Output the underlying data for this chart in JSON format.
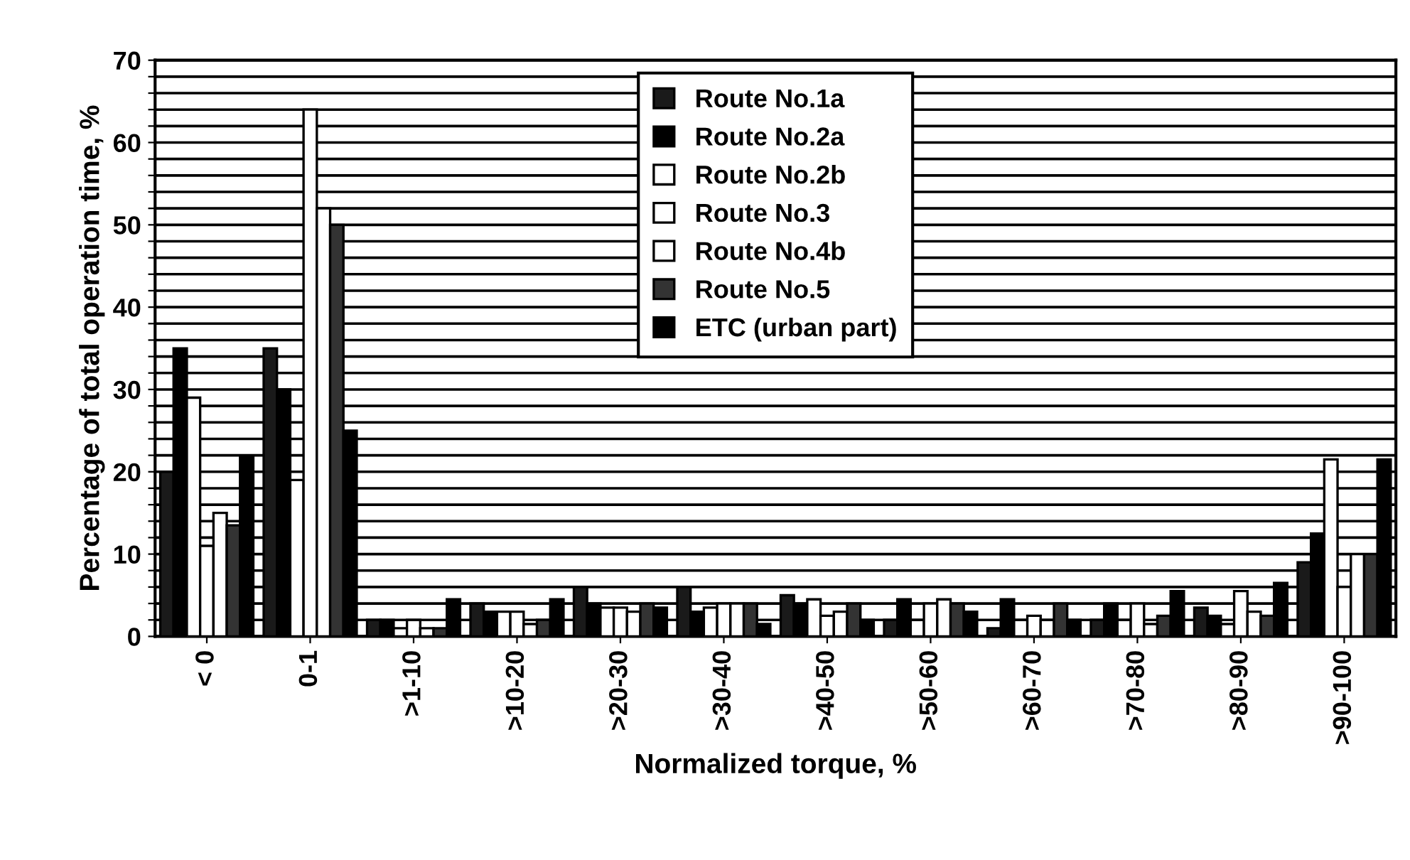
{
  "chart_data": {
    "type": "bar",
    "xlabel": "Normalized torque, %",
    "ylabel": "Percentage of total operation time, %",
    "categories": [
      "< 0",
      "0-1",
      ">1-10",
      ">10-20",
      ">20-30",
      ">30-40",
      ">40-50",
      ">50-60",
      ">60-70",
      ">70-80",
      ">80-90",
      ">90-100"
    ],
    "series": [
      {
        "name": "Route No.1a",
        "color": "#1a1a1a",
        "values": [
          20,
          35,
          2,
          4,
          6,
          6,
          5,
          2,
          1,
          2,
          3.5,
          9
        ]
      },
      {
        "name": "Route No.2a",
        "color": "#000000",
        "values": [
          35,
          30,
          2,
          3,
          4,
          3,
          4,
          4.5,
          4.5,
          4,
          2.5,
          12.5
        ]
      },
      {
        "name": "Route No.2b",
        "color": "#ffffff",
        "values": [
          29,
          19,
          1,
          3,
          3.5,
          3.5,
          4.5,
          2,
          2,
          2,
          1.5,
          21.5
        ]
      },
      {
        "name": "Route No.3",
        "color": "#ffffff",
        "values": [
          11,
          64,
          2,
          3,
          3.5,
          4,
          2.5,
          4,
          2.5,
          4,
          5.5,
          6
        ]
      },
      {
        "name": "Route No.4b",
        "color": "#ffffff",
        "values": [
          15,
          52,
          1,
          1.5,
          3,
          4,
          3,
          4.5,
          2,
          1.5,
          3,
          10
        ]
      },
      {
        "name": "Route No.5",
        "color": "#333333",
        "values": [
          13.5,
          50,
          1,
          2,
          4,
          4,
          4,
          4,
          4,
          2.5,
          2.5,
          10
        ]
      },
      {
        "name": "ETC (urban part)",
        "color": "#000000",
        "values": [
          22,
          25,
          4.5,
          4.5,
          3.5,
          1.5,
          2,
          3,
          2,
          5.5,
          6.5,
          21.5
        ]
      }
    ],
    "ylim": [
      0,
      70
    ],
    "yticks": [
      0,
      {
        "value": 2,
        "label": null
      },
      {
        "value": 4,
        "label": null
      },
      {
        "value": 6,
        "label": null
      },
      {
        "value": 8,
        "label": null
      },
      10,
      {
        "value": 12,
        "label": null
      },
      {
        "value": 14,
        "label": null
      },
      {
        "value": 16,
        "label": null
      },
      {
        "value": 18,
        "label": null
      },
      20,
      {
        "value": 22,
        "label": null
      },
      {
        "value": 24,
        "label": null
      },
      {
        "value": 26,
        "label": null
      },
      {
        "value": 28,
        "label": null
      },
      30,
      {
        "value": 32,
        "label": null
      },
      {
        "value": 34,
        "label": null
      },
      {
        "value": 36,
        "label": null
      },
      {
        "value": 38,
        "label": null
      },
      40,
      {
        "value": 42,
        "label": null
      },
      {
        "value": 44,
        "label": null
      },
      {
        "value": 46,
        "label": null
      },
      {
        "value": 48,
        "label": null
      },
      50,
      {
        "value": 52,
        "label": null
      },
      {
        "value": 54,
        "label": null
      },
      {
        "value": 56,
        "label": null
      },
      {
        "value": 58,
        "label": null
      },
      60,
      {
        "value": 62,
        "label": null
      },
      {
        "value": 64,
        "label": null
      },
      {
        "value": 66,
        "label": null
      },
      {
        "value": 68,
        "label": null
      },
      70
    ],
    "grid": "y",
    "legend": "top"
  }
}
